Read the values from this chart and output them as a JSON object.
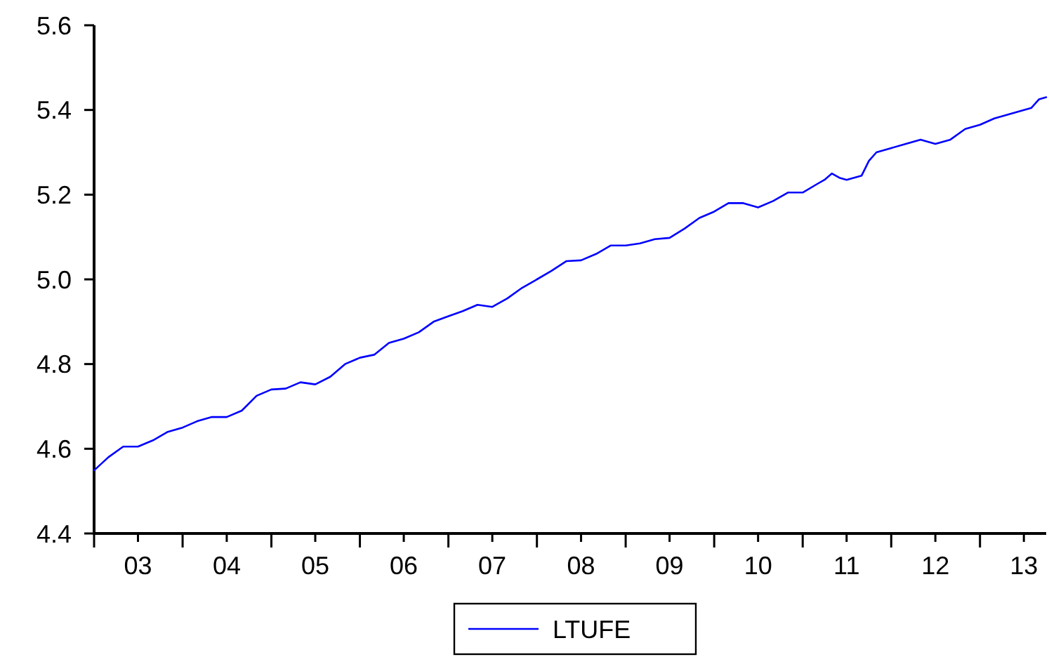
{
  "chart_data": {
    "type": "line",
    "x": [
      "2003-01",
      "2003-03",
      "2003-05",
      "2003-07",
      "2003-09",
      "2003-11",
      "2004-01",
      "2004-03",
      "2004-05",
      "2004-07",
      "2004-09",
      "2004-11",
      "2005-01",
      "2005-03",
      "2005-05",
      "2005-07",
      "2005-09",
      "2005-11",
      "2006-01",
      "2006-03",
      "2006-05",
      "2006-07",
      "2006-09",
      "2006-11",
      "2007-01",
      "2007-03",
      "2007-05",
      "2007-07",
      "2007-09",
      "2007-11",
      "2008-01",
      "2008-03",
      "2008-05",
      "2008-07",
      "2008-09",
      "2008-11",
      "2009-01",
      "2009-03",
      "2009-05",
      "2009-07",
      "2009-09",
      "2009-11",
      "2010-01",
      "2010-03",
      "2010-05",
      "2010-07",
      "2010-09",
      "2010-11",
      "2011-01",
      "2011-03",
      "2011-04",
      "2011-05",
      "2011-06",
      "2011-07",
      "2011-09",
      "2011-10",
      "2011-11",
      "2012-01",
      "2012-03",
      "2012-05",
      "2012-07",
      "2012-09",
      "2012-11",
      "2013-01",
      "2013-03",
      "2013-05",
      "2013-07",
      "2013-08",
      "2013-09",
      "2013-10"
    ],
    "series": [
      {
        "name": "LTUFE",
        "color": "#0000ff",
        "values": [
          4.549,
          4.58,
          4.605,
          4.605,
          4.62,
          4.64,
          4.65,
          4.665,
          4.675,
          4.675,
          4.69,
          4.725,
          4.74,
          4.742,
          4.757,
          4.752,
          4.77,
          4.8,
          4.815,
          4.822,
          4.85,
          4.86,
          4.875,
          4.9,
          4.913,
          4.925,
          4.94,
          4.935,
          4.955,
          4.98,
          5.0,
          5.02,
          5.043,
          5.045,
          5.06,
          5.08,
          5.08,
          5.085,
          5.095,
          5.098,
          5.12,
          5.145,
          5.16,
          5.18,
          5.18,
          5.17,
          5.185,
          5.205,
          5.205,
          5.225,
          5.235,
          5.25,
          5.24,
          5.235,
          5.245,
          5.28,
          5.3,
          5.31,
          5.32,
          5.33,
          5.32,
          5.33,
          5.355,
          5.365,
          5.38,
          5.39,
          5.4,
          5.405,
          5.425,
          5.43
        ]
      }
    ],
    "xlim": [
      "2003-01",
      "2013-10"
    ],
    "xticks": [
      {
        "value": "2003-01",
        "label": null
      },
      {
        "value": "2003-07",
        "label": "03"
      },
      {
        "value": "2004-01",
        "label": null
      },
      {
        "value": "2004-07",
        "label": "04"
      },
      {
        "value": "2005-01",
        "label": null
      },
      {
        "value": "2005-07",
        "label": "05"
      },
      {
        "value": "2006-01",
        "label": null
      },
      {
        "value": "2006-07",
        "label": "06"
      },
      {
        "value": "2007-01",
        "label": null
      },
      {
        "value": "2007-07",
        "label": "07"
      },
      {
        "value": "2008-01",
        "label": null
      },
      {
        "value": "2008-07",
        "label": "08"
      },
      {
        "value": "2009-01",
        "label": null
      },
      {
        "value": "2009-07",
        "label": "09"
      },
      {
        "value": "2010-01",
        "label": null
      },
      {
        "value": "2010-07",
        "label": "10"
      },
      {
        "value": "2011-01",
        "label": null
      },
      {
        "value": "2011-07",
        "label": "11"
      },
      {
        "value": "2012-01",
        "label": null
      },
      {
        "value": "2012-07",
        "label": "12"
      },
      {
        "value": "2013-01",
        "label": null
      },
      {
        "value": "2013-07",
        "label": "13"
      }
    ],
    "ylim": [
      4.4,
      5.6
    ],
    "yticks": [
      {
        "value": 4.4,
        "label": "4.4"
      },
      {
        "value": 4.6,
        "label": "4.6"
      },
      {
        "value": 4.8,
        "label": "4.8"
      },
      {
        "value": 5.0,
        "label": "5.0"
      },
      {
        "value": 5.2,
        "label": "5.2"
      },
      {
        "value": 5.4,
        "label": "5.4"
      },
      {
        "value": 5.6,
        "label": "5.6"
      }
    ],
    "legend": "bottom",
    "grid": false,
    "marker": "none",
    "line_style": "solid"
  }
}
